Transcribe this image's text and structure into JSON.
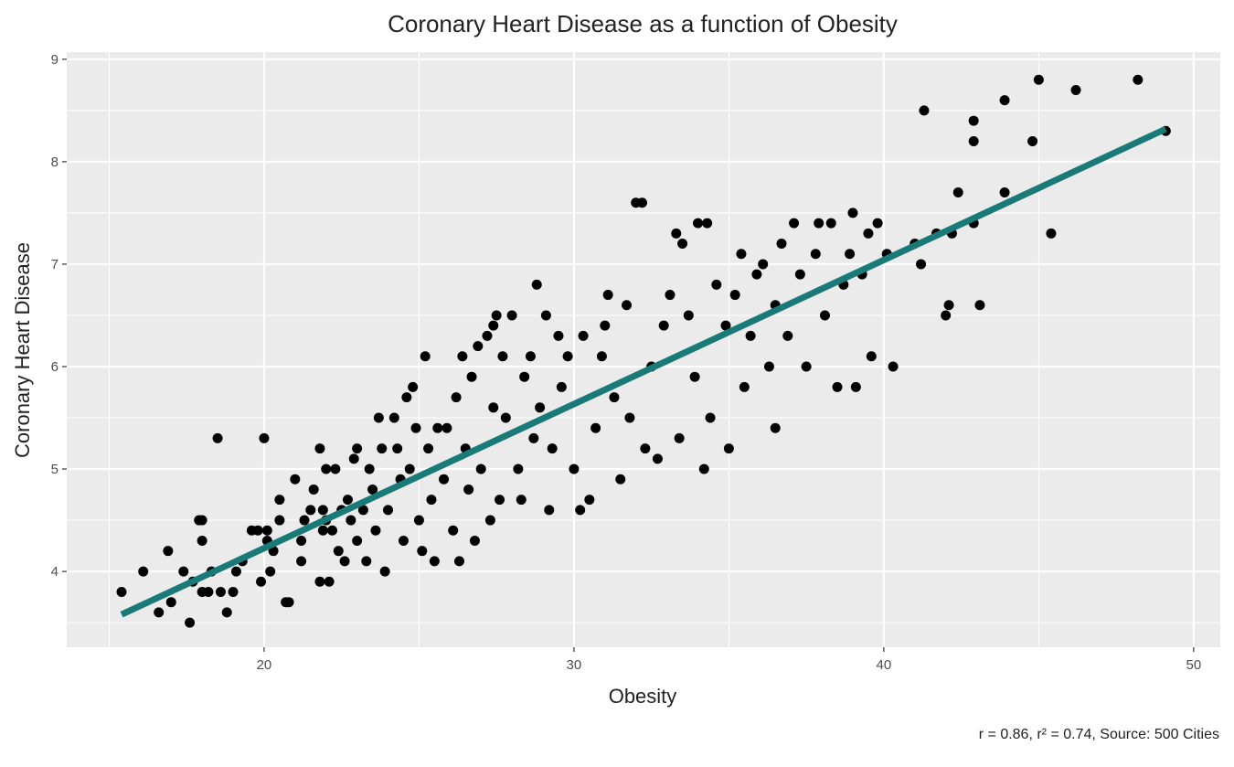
{
  "chart_data": {
    "type": "scatter",
    "title": "Coronary Heart Disease as a function of Obesity",
    "x_label": "Obesity",
    "y_label": "Coronary Heart Disease",
    "caption": "r = 0.86, r² = 0.74, Source: 500 Cities",
    "xlim": [
      13.63,
      50.86
    ],
    "ylim": [
      3.26,
      9.07
    ],
    "xticks": [
      20,
      30,
      40,
      50
    ],
    "yticks": [
      4,
      5,
      6,
      7,
      8,
      9
    ],
    "xminor": [
      15,
      25,
      35,
      45
    ],
    "yminor": [
      3.5,
      4.5,
      5.5,
      6.5,
      7.5,
      8.5
    ],
    "grid": true,
    "point_color": "#000000",
    "x": [
      15.4,
      16.1,
      16.6,
      16.9,
      17.0,
      17.4,
      17.6,
      17.7,
      17.9,
      18.0,
      18.0,
      18.0,
      18.2,
      18.3,
      18.5,
      18.6,
      18.8,
      19.0,
      19.1,
      19.3,
      19.6,
      19.8,
      20.0,
      19.9,
      20.1,
      20.2,
      20.1,
      20.3,
      20.5,
      20.5,
      20.7,
      20.8,
      21.0,
      21.2,
      21.2,
      21.3,
      21.5,
      21.6,
      21.8,
      21.9,
      21.8,
      21.9,
      22.0,
      22.1,
      22.0,
      22.2,
      22.3,
      22.4,
      22.5,
      22.6,
      22.7,
      22.8,
      22.9,
      23.0,
      23.0,
      23.2,
      23.3,
      23.4,
      23.5,
      23.6,
      23.7,
      23.8,
      23.9,
      24.0,
      24.2,
      24.3,
      24.4,
      24.5,
      24.6,
      24.7,
      24.8,
      24.9,
      25.0,
      25.1,
      25.2,
      25.3,
      25.4,
      25.5,
      25.6,
      25.8,
      25.9,
      26.1,
      26.2,
      26.3,
      26.4,
      26.5,
      26.6,
      26.7,
      26.8,
      26.9,
      27.0,
      27.2,
      27.3,
      27.4,
      27.4,
      27.5,
      27.6,
      27.7,
      27.8,
      28.0,
      28.2,
      28.3,
      28.4,
      28.6,
      28.7,
      28.8,
      28.9,
      29.1,
      29.2,
      29.3,
      29.5,
      29.6,
      29.8,
      30.0,
      30.2,
      30.3,
      30.5,
      30.7,
      30.9,
      31.0,
      31.1,
      31.3,
      31.5,
      31.7,
      31.8,
      32.0,
      32.2,
      32.3,
      32.5,
      32.7,
      32.9,
      33.1,
      33.3,
      33.4,
      33.5,
      33.7,
      33.9,
      34.0,
      34.2,
      34.3,
      34.4,
      34.6,
      34.9,
      35.0,
      35.2,
      35.4,
      35.5,
      35.7,
      35.9,
      36.1,
      36.3,
      36.5,
      36.5,
      36.7,
      36.9,
      37.1,
      37.3,
      37.5,
      37.8,
      37.9,
      38.1,
      38.3,
      38.5,
      38.7,
      38.9,
      39.0,
      39.1,
      39.3,
      39.5,
      39.6,
      39.8,
      40.3,
      40.1,
      41.0,
      41.2,
      41.3,
      41.7,
      42.0,
      42.1,
      42.2,
      42.4,
      42.9,
      42.9,
      42.9,
      43.1,
      43.9,
      43.9,
      44.8,
      45.0,
      45.4,
      46.2,
      48.2,
      49.1
    ],
    "values": [
      3.8,
      4.0,
      3.6,
      4.2,
      3.7,
      4.0,
      3.5,
      3.9,
      4.5,
      4.5,
      4.3,
      3.8,
      3.8,
      4.0,
      5.3,
      3.8,
      3.6,
      3.8,
      4.0,
      4.1,
      4.4,
      4.4,
      5.3,
      3.9,
      4.4,
      4.0,
      4.3,
      4.2,
      4.5,
      4.7,
      3.7,
      3.7,
      4.9,
      4.1,
      4.3,
      4.5,
      4.6,
      4.8,
      3.9,
      4.4,
      5.2,
      4.6,
      4.5,
      3.9,
      5.0,
      4.4,
      5.0,
      4.2,
      4.6,
      4.1,
      4.7,
      4.5,
      5.1,
      5.2,
      4.3,
      4.6,
      4.1,
      5.0,
      4.8,
      4.4,
      5.5,
      5.2,
      4.0,
      4.6,
      5.5,
      5.2,
      4.9,
      4.3,
      5.7,
      5.0,
      5.8,
      5.4,
      4.5,
      4.2,
      6.1,
      5.2,
      4.7,
      4.1,
      5.4,
      4.9,
      5.4,
      4.4,
      5.7,
      4.1,
      6.1,
      5.2,
      4.8,
      5.9,
      4.3,
      6.2,
      5.0,
      6.3,
      4.5,
      5.6,
      6.4,
      6.5,
      4.7,
      6.1,
      5.5,
      6.5,
      5.0,
      4.7,
      5.9,
      6.1,
      5.3,
      6.8,
      5.6,
      6.5,
      4.6,
      5.2,
      6.3,
      5.8,
      6.1,
      5.0,
      4.6,
      6.3,
      4.7,
      5.4,
      6.1,
      6.4,
      6.7,
      5.7,
      4.9,
      6.6,
      5.5,
      7.6,
      7.6,
      5.2,
      6.0,
      5.1,
      6.4,
      6.7,
      7.3,
      5.3,
      7.2,
      6.5,
      5.9,
      7.4,
      5.0,
      7.4,
      5.5,
      6.8,
      6.4,
      5.2,
      6.7,
      7.1,
      5.8,
      6.3,
      6.9,
      7.0,
      6.0,
      5.4,
      6.6,
      7.2,
      6.3,
      7.4,
      6.9,
      6.0,
      7.1,
      7.4,
      6.5,
      7.4,
      5.8,
      6.8,
      7.1,
      7.5,
      5.8,
      6.9,
      7.3,
      6.1,
      7.4,
      6.0,
      7.1,
      7.2,
      7.0,
      8.5,
      7.3,
      6.5,
      6.6,
      7.3,
      7.7,
      8.4,
      8.2,
      7.4,
      6.6,
      8.6,
      7.7,
      8.2,
      8.8,
      7.3,
      8.7,
      8.8,
      8.3
    ],
    "trend_line": {
      "color": "#1a7a78",
      "x": [
        15.4,
        49.1
      ],
      "values": [
        3.58,
        8.32
      ]
    }
  }
}
